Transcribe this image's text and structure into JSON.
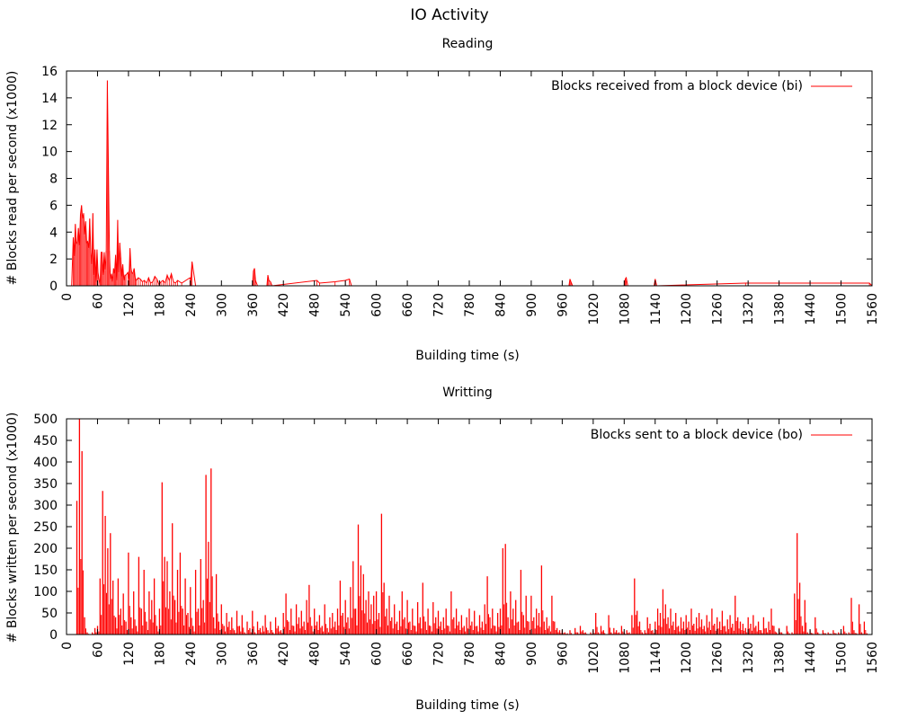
{
  "title": "IO Activity",
  "colors": {
    "series": "#ff0000",
    "axis": "#000000"
  },
  "chart_data": [
    {
      "type": "line",
      "title": "Reading",
      "xlabel": "Building time (s)",
      "ylabel": "# Blocks read per second (x1000)",
      "xlim": [
        0,
        1560
      ],
      "ylim": [
        0,
        16
      ],
      "xticks": [
        0,
        60,
        120,
        180,
        240,
        300,
        360,
        420,
        480,
        540,
        600,
        660,
        720,
        780,
        840,
        900,
        960,
        1020,
        1080,
        1140,
        1200,
        1260,
        1320,
        1380,
        1440,
        1500,
        1560
      ],
      "yticks": [
        0,
        2,
        4,
        6,
        8,
        10,
        12,
        14,
        16
      ],
      "grid": false,
      "legend": {
        "label": "Blocks received from a block device (bi)",
        "placement": "top-right"
      },
      "series": [
        {
          "name": "Blocks received from a block device (bi)",
          "points": [
            [
              10,
              0
            ],
            [
              13,
              3.6
            ],
            [
              15,
              2.2
            ],
            [
              17,
              4.6
            ],
            [
              19,
              3.1
            ],
            [
              21,
              3.3
            ],
            [
              23,
              4.3
            ],
            [
              25,
              3.0
            ],
            [
              27,
              5.3
            ],
            [
              29,
              6.0
            ],
            [
              31,
              5.0
            ],
            [
              33,
              5.4
            ],
            [
              35,
              3.8
            ],
            [
              37,
              4.8
            ],
            [
              39,
              3.2
            ],
            [
              41,
              3.3
            ],
            [
              43,
              2.8
            ],
            [
              45,
              5.0
            ],
            [
              47,
              2.5
            ],
            [
              49,
              1.6
            ],
            [
              51,
              5.4
            ],
            [
              53,
              0.8
            ],
            [
              55,
              2.7
            ],
            [
              57,
              0.3
            ],
            [
              59,
              2.7
            ],
            [
              61,
              1.0
            ],
            [
              65,
              0
            ],
            [
              67,
              2.5
            ],
            [
              69,
              2.5
            ],
            [
              71,
              0.8
            ],
            [
              73,
              2.5
            ],
            [
              75,
              1.2
            ],
            [
              77,
              2.6
            ],
            [
              79,
              15.3
            ],
            [
              81,
              9.3
            ],
            [
              83,
              2.6
            ],
            [
              85,
              0.5
            ],
            [
              87,
              0.9
            ],
            [
              89,
              0.3
            ],
            [
              91,
              1.3
            ],
            [
              93,
              0.9
            ],
            [
              95,
              2.3
            ],
            [
              97,
              0.4
            ],
            [
              99,
              4.9
            ],
            [
              101,
              1.0
            ],
            [
              103,
              3.2
            ],
            [
              105,
              2.1
            ],
            [
              107,
              0.7
            ],
            [
              109,
              1.6
            ],
            [
              111,
              0.4
            ],
            [
              113,
              0.8
            ],
            [
              115,
              0.8
            ],
            [
              119,
              1.0
            ],
            [
              121,
              0.5
            ],
            [
              123,
              2.8
            ],
            [
              125,
              1.3
            ],
            [
              127,
              0.9
            ],
            [
              129,
              1.0
            ],
            [
              131,
              1.3
            ],
            [
              133,
              0.6
            ],
            [
              135,
              0.4
            ],
            [
              139,
              0.6
            ],
            [
              143,
              0.5
            ],
            [
              147,
              0.3
            ],
            [
              151,
              0.4
            ],
            [
              155,
              0.2
            ],
            [
              159,
              0.6
            ],
            [
              163,
              0.2
            ],
            [
              167,
              0.3
            ],
            [
              171,
              0.7
            ],
            [
              175,
              0.5
            ],
            [
              179,
              0.1
            ],
            [
              183,
              0.3
            ],
            [
              187,
              0.4
            ],
            [
              191,
              0.2
            ],
            [
              195,
              0.8
            ],
            [
              199,
              0.4
            ],
            [
              203,
              0.9
            ],
            [
              207,
              0.3
            ],
            [
              211,
              0.2
            ],
            [
              215,
              0.4
            ],
            [
              223,
              0.2
            ],
            [
              239,
              0.6
            ],
            [
              241,
              0.5
            ],
            [
              243,
              1.8
            ],
            [
              250,
              0
            ],
            [
              360,
              0
            ],
            [
              362,
              1.1
            ],
            [
              364,
              1.3
            ],
            [
              366,
              0.4
            ],
            [
              370,
              0
            ],
            [
              388,
              0
            ],
            [
              390,
              0.8
            ],
            [
              392,
              0.4
            ],
            [
              395,
              0.3
            ],
            [
              398,
              0
            ],
            [
              485,
              0.4
            ],
            [
              490,
              0.2
            ],
            [
              520,
              0.3
            ],
            [
              540,
              0.4
            ],
            [
              548,
              0.5
            ],
            [
              552,
              0
            ],
            [
              973,
              0
            ],
            [
              975,
              0.5
            ],
            [
              977,
              0.3
            ],
            [
              980,
              0
            ],
            [
              1080,
              0
            ],
            [
              1082,
              0.5
            ],
            [
              1084,
              0.6
            ],
            [
              1087,
              0
            ],
            [
              1138,
              0
            ],
            [
              1140,
              0.5
            ],
            [
              1143,
              0
            ],
            [
              1315,
              0.2
            ],
            [
              1555,
              0.2
            ],
            [
              1560,
              0
            ]
          ]
        }
      ]
    },
    {
      "type": "line",
      "title": "Writting",
      "xlabel": "Building time (s)",
      "ylabel": "# Blocks written per second (x1000)",
      "xlim": [
        0,
        1560
      ],
      "ylim": [
        0,
        500
      ],
      "xticks": [
        0,
        60,
        120,
        180,
        240,
        300,
        360,
        420,
        480,
        540,
        600,
        660,
        720,
        780,
        840,
        900,
        960,
        1020,
        1080,
        1140,
        1200,
        1260,
        1320,
        1380,
        1440,
        1500,
        1560
      ],
      "yticks": [
        0,
        50,
        100,
        150,
        200,
        250,
        300,
        350,
        400,
        450,
        500
      ],
      "grid": false,
      "legend": {
        "label": "Blocks sent to a block device (bo)",
        "placement": "top-right"
      },
      "series": [
        {
          "name": "Blocks sent to a block device (bo)",
          "x_start": 0,
          "x_step": 5,
          "values": [
            0,
            0,
            0,
            0,
            310,
            500,
            425,
            40,
            5,
            0,
            5,
            15,
            20,
            130,
            333,
            275,
            200,
            235,
            125,
            40,
            130,
            60,
            95,
            30,
            190,
            40,
            100,
            20,
            180,
            60,
            150,
            30,
            100,
            80,
            130,
            20,
            60,
            353,
            180,
            170,
            100,
            258,
            80,
            150,
            190,
            60,
            130,
            50,
            110,
            20,
            150,
            60,
            175,
            80,
            370,
            215,
            385,
            40,
            140,
            30,
            70,
            20,
            50,
            30,
            40,
            10,
            55,
            20,
            45,
            5,
            30,
            15,
            55,
            5,
            30,
            15,
            20,
            45,
            10,
            30,
            5,
            40,
            20,
            10,
            50,
            95,
            30,
            60,
            20,
            70,
            40,
            55,
            30,
            80,
            115,
            20,
            60,
            30,
            45,
            20,
            70,
            15,
            40,
            50,
            30,
            60,
            125,
            50,
            80,
            40,
            110,
            170,
            60,
            255,
            160,
            140,
            80,
            100,
            70,
            90,
            100,
            50,
            280,
            120,
            60,
            90,
            40,
            70,
            30,
            55,
            100,
            40,
            80,
            30,
            60,
            20,
            75,
            40,
            120,
            30,
            60,
            20,
            75,
            40,
            55,
            30,
            40,
            60,
            20,
            100,
            40,
            60,
            30,
            45,
            20,
            40,
            60,
            30,
            55,
            20,
            45,
            30,
            70,
            135,
            40,
            60,
            20,
            50,
            60,
            200,
            210,
            40,
            100,
            60,
            80,
            30,
            150,
            45,
            90,
            30,
            90,
            40,
            60,
            50,
            160,
            30,
            40,
            20,
            90,
            30,
            15,
            10,
            10,
            5,
            3,
            10,
            0,
            15,
            5,
            20,
            10,
            5,
            0,
            5,
            10,
            50,
            5,
            20,
            10,
            0,
            45,
            5,
            15,
            10,
            5,
            20,
            5,
            10,
            5,
            45,
            130,
            55,
            30,
            5,
            10,
            40,
            25,
            10,
            30,
            60,
            50,
            105,
            70,
            40,
            60,
            30,
            50,
            20,
            40,
            30,
            45,
            30,
            60,
            25,
            40,
            50,
            35,
            20,
            45,
            30,
            60,
            25,
            40,
            30,
            55,
            20,
            35,
            45,
            25,
            90,
            40,
            30,
            25,
            15,
            40,
            25,
            45,
            20,
            30,
            10,
            40,
            15,
            30,
            60,
            20,
            5,
            15,
            5,
            0,
            20,
            3,
            5,
            95,
            235,
            120,
            20,
            80,
            5,
            10,
            3,
            40,
            5,
            0,
            10,
            3,
            5,
            2,
            10,
            3,
            5,
            5,
            20,
            3,
            5,
            85,
            10,
            3,
            70,
            5,
            30,
            3,
            0,
            0
          ]
        }
      ]
    }
  ]
}
